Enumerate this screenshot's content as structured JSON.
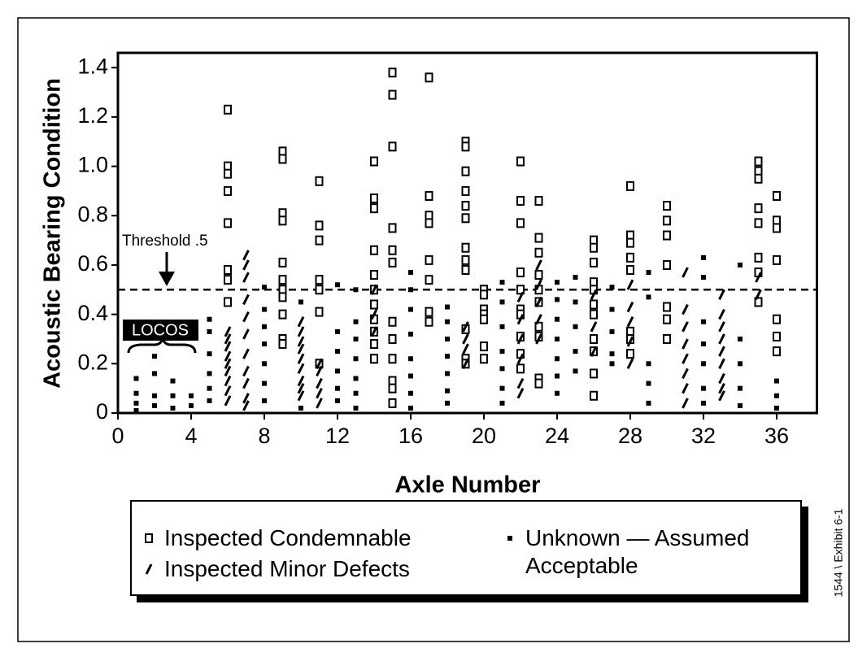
{
  "chart_data": {
    "type": "scatter",
    "xlabel": "Axle Number",
    "ylabel": "Acoustic Bearing Condition",
    "xlim": [
      0,
      38.2
    ],
    "ylim": [
      0,
      1.46
    ],
    "xticks": [
      0,
      4,
      8,
      12,
      16,
      20,
      24,
      28,
      32,
      36
    ],
    "yticks": [
      0,
      0.2,
      0.4,
      0.6,
      0.8,
      {
        "value": 1,
        "label": "1.0"
      },
      1.2,
      1.4
    ],
    "threshold": 0.5,
    "threshold_label": "Threshold .5",
    "group_label": "LOCOS",
    "side_note": "1544 \\ Exhibit 6-1",
    "series": [
      {
        "name": "Inspected Condemnable",
        "marker": "open-square",
        "color": "#000000",
        "x": [
          6,
          6,
          6,
          6,
          6,
          6,
          6,
          6,
          9,
          9,
          9,
          9,
          9,
          9,
          9,
          9,
          9,
          9,
          9,
          11,
          11,
          11,
          11,
          11,
          11,
          11,
          14,
          14,
          14,
          14,
          14,
          14,
          14,
          14,
          14,
          14,
          14,
          15,
          15,
          15,
          15,
          15,
          15,
          15,
          15,
          15,
          15,
          15,
          15,
          17,
          17,
          17,
          17,
          17,
          17,
          17,
          17,
          19,
          19,
          19,
          19,
          19,
          19,
          19,
          19,
          19,
          19,
          19,
          19,
          20,
          20,
          20,
          20,
          20,
          20,
          20,
          22,
          22,
          22,
          22,
          22,
          22,
          22,
          22,
          22,
          22,
          23,
          23,
          23,
          23,
          23,
          23,
          23,
          23,
          23,
          23,
          26,
          26,
          26,
          26,
          26,
          26,
          26,
          26,
          26,
          26,
          26,
          28,
          28,
          28,
          28,
          28,
          28,
          28,
          28,
          30,
          30,
          30,
          30,
          30,
          30,
          30,
          35,
          35,
          35,
          35,
          35,
          35,
          35,
          35,
          36,
          36,
          36,
          36,
          36,
          36,
          36
        ],
        "values": [
          1.23,
          1.0,
          0.97,
          0.9,
          0.77,
          0.58,
          0.54,
          0.45,
          1.06,
          1.03,
          0.81,
          0.78,
          0.61,
          0.54,
          0.5,
          0.47,
          0.4,
          0.3,
          0.28,
          0.94,
          0.76,
          0.7,
          0.54,
          0.5,
          0.41,
          0.2,
          1.02,
          0.87,
          0.83,
          0.66,
          0.56,
          0.5,
          0.44,
          0.38,
          0.33,
          0.28,
          0.22,
          1.38,
          1.29,
          1.08,
          0.75,
          0.66,
          0.61,
          0.37,
          0.3,
          0.22,
          0.13,
          0.1,
          0.04,
          1.36,
          0.88,
          0.8,
          0.77,
          0.62,
          0.54,
          0.41,
          0.37,
          1.1,
          1.08,
          0.98,
          0.9,
          0.84,
          0.79,
          0.67,
          0.62,
          0.58,
          0.34,
          0.22,
          0.2,
          0.5,
          0.48,
          0.42,
          0.4,
          0.38,
          0.27,
          0.22,
          1.02,
          0.86,
          0.77,
          0.57,
          0.5,
          0.42,
          0.4,
          0.31,
          0.24,
          0.18,
          0.86,
          0.71,
          0.65,
          0.56,
          0.5,
          0.45,
          0.35,
          0.31,
          0.14,
          0.12,
          0.7,
          0.67,
          0.61,
          0.53,
          0.5,
          0.44,
          0.4,
          0.3,
          0.25,
          0.16,
          0.07,
          0.92,
          0.72,
          0.69,
          0.63,
          0.58,
          0.33,
          0.3,
          0.24,
          0.84,
          0.78,
          0.72,
          0.6,
          0.43,
          0.38,
          0.3,
          1.02,
          0.98,
          0.95,
          0.83,
          0.77,
          0.63,
          0.57,
          0.45,
          0.88,
          0.78,
          0.75,
          0.62,
          0.38,
          0.31,
          0.25
        ]
      },
      {
        "name": "Inspected Minor Defects",
        "marker": "slash",
        "color": "#000000",
        "x": [
          6,
          6,
          6,
          6,
          6,
          6,
          6,
          6,
          6,
          7,
          7,
          7,
          7,
          7,
          7,
          7,
          7,
          7,
          7,
          7,
          10,
          10,
          10,
          10,
          10,
          10,
          10,
          10,
          10,
          11,
          11,
          11,
          11,
          11,
          14,
          14,
          14,
          19,
          19,
          19,
          19,
          22,
          22,
          22,
          22,
          22,
          22,
          23,
          23,
          23,
          23,
          23,
          26,
          26,
          26,
          28,
          28,
          28,
          28,
          28,
          31,
          31,
          31,
          31,
          31,
          31,
          31,
          31,
          33,
          33,
          33,
          33,
          33,
          33,
          33,
          33,
          33,
          35,
          35
        ],
        "values": [
          0.33,
          0.3,
          0.27,
          0.23,
          0.2,
          0.17,
          0.13,
          0.09,
          0.05,
          0.64,
          0.6,
          0.55,
          0.46,
          0.39,
          0.32,
          0.24,
          0.17,
          0.12,
          0.06,
          0.03,
          0.37,
          0.33,
          0.29,
          0.26,
          0.22,
          0.18,
          0.13,
          0.1,
          0.07,
          0.2,
          0.17,
          0.12,
          0.08,
          0.04,
          0.5,
          0.4,
          0.33,
          0.35,
          0.3,
          0.26,
          0.2,
          0.47,
          0.38,
          0.3,
          0.22,
          0.12,
          0.08,
          0.6,
          0.52,
          0.45,
          0.38,
          0.3,
          0.48,
          0.35,
          0.25,
          0.52,
          0.43,
          0.37,
          0.29,
          0.2,
          0.57,
          0.42,
          0.35,
          0.28,
          0.22,
          0.16,
          0.1,
          0.04,
          0.48,
          0.4,
          0.35,
          0.3,
          0.25,
          0.2,
          0.14,
          0.1,
          0.07,
          0.55,
          0.48
        ]
      },
      {
        "name": "Unknown — Assumed Acceptable",
        "marker": "filled-square",
        "color": "#000000",
        "x": [
          1,
          1,
          1,
          1,
          2,
          2,
          2,
          2,
          3,
          3,
          3,
          4,
          4,
          5,
          5,
          5,
          5,
          5,
          5,
          8,
          8,
          8,
          8,
          8,
          8,
          8,
          10,
          10,
          12,
          12,
          12,
          12,
          12,
          12,
          13,
          13,
          13,
          13,
          13,
          13,
          13,
          16,
          16,
          16,
          16,
          16,
          16,
          16,
          16,
          18,
          18,
          18,
          18,
          18,
          18,
          18,
          21,
          21,
          21,
          21,
          21,
          21,
          21,
          24,
          24,
          24,
          24,
          24,
          24,
          24,
          25,
          25,
          25,
          25,
          25,
          27,
          27,
          27,
          27,
          27,
          29,
          29,
          29,
          29,
          29,
          32,
          32,
          32,
          32,
          32,
          32,
          32,
          34,
          34,
          34,
          34,
          34,
          36,
          36,
          36
        ],
        "values": [
          0.14,
          0.08,
          0.04,
          0.01,
          0.23,
          0.16,
          0.07,
          0.03,
          0.13,
          0.07,
          0.02,
          0.07,
          0.03,
          0.38,
          0.33,
          0.24,
          0.16,
          0.1,
          0.05,
          0.51,
          0.42,
          0.35,
          0.28,
          0.2,
          0.12,
          0.05,
          0.45,
          0.02,
          0.52,
          0.33,
          0.25,
          0.17,
          0.1,
          0.05,
          0.5,
          0.37,
          0.3,
          0.22,
          0.14,
          0.08,
          0.02,
          0.57,
          0.5,
          0.42,
          0.32,
          0.22,
          0.15,
          0.08,
          0.02,
          0.43,
          0.37,
          0.3,
          0.23,
          0.16,
          0.09,
          0.04,
          0.53,
          0.45,
          0.35,
          0.25,
          0.18,
          0.1,
          0.04,
          0.53,
          0.46,
          0.38,
          0.3,
          0.22,
          0.15,
          0.08,
          0.55,
          0.45,
          0.35,
          0.25,
          0.17,
          0.51,
          0.42,
          0.33,
          0.24,
          0.2,
          0.57,
          0.47,
          0.2,
          0.12,
          0.04,
          0.63,
          0.55,
          0.37,
          0.28,
          0.2,
          0.1,
          0.04,
          0.6,
          0.3,
          0.2,
          0.1,
          0.03,
          0.13,
          0.07,
          0.02
        ]
      }
    ]
  }
}
